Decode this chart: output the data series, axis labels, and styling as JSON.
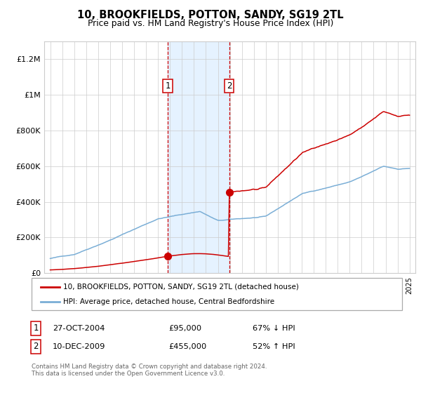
{
  "title": "10, BROOKFIELDS, POTTON, SANDY, SG19 2TL",
  "subtitle": "Price paid vs. HM Land Registry's House Price Index (HPI)",
  "legend_line1": "10, BROOKFIELDS, POTTON, SANDY, SG19 2TL (detached house)",
  "legend_line2": "HPI: Average price, detached house, Central Bedfordshire",
  "transaction1_date": "27-OCT-2004",
  "transaction1_price": 95000,
  "transaction1_label": "67% ↓ HPI",
  "transaction1_x": 2004.82,
  "transaction2_date": "10-DEC-2009",
  "transaction2_price": 455000,
  "transaction2_label": "52% ↑ HPI",
  "transaction2_x": 2009.94,
  "red_color": "#cc0000",
  "blue_color": "#7aaed6",
  "bg_shaded": "#ddeeff",
  "ylim": [
    0,
    1300000
  ],
  "xlim_start": 1994.5,
  "xlim_end": 2025.5,
  "footer": "Contains HM Land Registry data © Crown copyright and database right 2024.\nThis data is licensed under the Open Government Licence v3.0.",
  "yticks": [
    0,
    200000,
    400000,
    600000,
    800000,
    1000000,
    1200000
  ],
  "ytick_labels": [
    "£0",
    "£200K",
    "£400K",
    "£600K",
    "£800K",
    "£1M",
    "£1.2M"
  ],
  "xticks": [
    1995,
    1996,
    1997,
    1998,
    1999,
    2000,
    2001,
    2002,
    2003,
    2004,
    2005,
    2006,
    2007,
    2008,
    2009,
    2010,
    2011,
    2012,
    2013,
    2014,
    2015,
    2016,
    2017,
    2018,
    2019,
    2020,
    2021,
    2022,
    2023,
    2024,
    2025
  ]
}
